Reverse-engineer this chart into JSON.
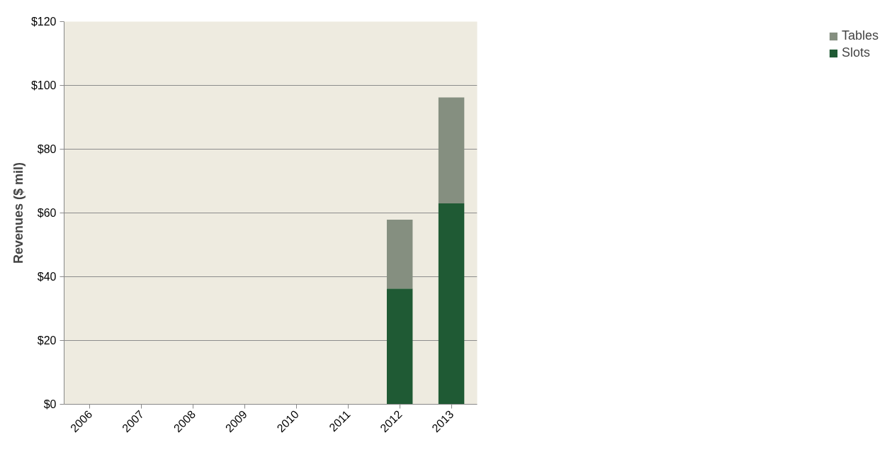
{
  "chart_data": {
    "type": "bar",
    "stacked": true,
    "ylabel": "Revenues ($ mil)",
    "categories": [
      "2006",
      "2007",
      "2008",
      "2009",
      "2010",
      "2011",
      "2012",
      "2013"
    ],
    "series": [
      {
        "name": "Slots",
        "color": "#1f5a34",
        "values": [
          null,
          null,
          null,
          null,
          null,
          null,
          36.3,
          63.0
        ]
      },
      {
        "name": "Tables",
        "color": "#858f80",
        "values": [
          null,
          null,
          null,
          null,
          null,
          null,
          21.6,
          33.2
        ]
      }
    ],
    "ylim": [
      0,
      120
    ],
    "yticks": [
      {
        "value": 0,
        "label": "$0"
      },
      {
        "value": 20,
        "label": "$20"
      },
      {
        "value": 40,
        "label": "$40"
      },
      {
        "value": 60,
        "label": "$60"
      },
      {
        "value": 80,
        "label": "$80"
      },
      {
        "value": 100,
        "label": "$100"
      },
      {
        "value": 120,
        "label": "$120"
      }
    ],
    "grid": "y",
    "legend": "right"
  }
}
